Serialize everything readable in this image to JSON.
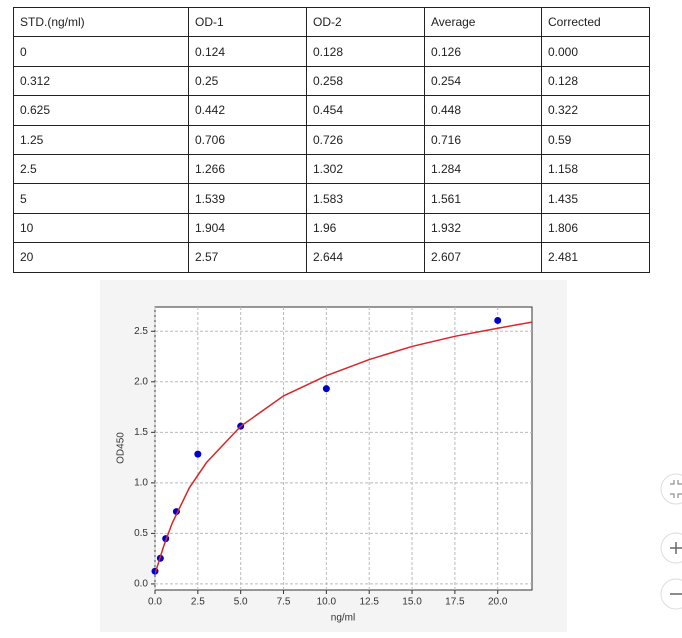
{
  "table": {
    "header": [
      "STD.(ng/ml)",
      "OD-1",
      "OD-2",
      "Average",
      "Corrected"
    ],
    "rows": [
      [
        "0",
        "0.124",
        "0.128",
        "0.126",
        "0.000"
      ],
      [
        "0.312",
        "0.25",
        "0.258",
        "0.254",
        "0.128"
      ],
      [
        "0.625",
        "0.442",
        "0.454",
        "0.448",
        "0.322"
      ],
      [
        "1.25",
        "0.706",
        "0.726",
        "0.716",
        "0.59"
      ],
      [
        "2.5",
        "1.266",
        "1.302",
        "1.284",
        "1.158"
      ],
      [
        "5",
        "1.539",
        "1.583",
        "1.561",
        "1.435"
      ],
      [
        "10",
        "1.904",
        "1.96",
        "1.932",
        "1.806"
      ],
      [
        "20",
        "2.57",
        "2.644",
        "2.607",
        "2.481"
      ]
    ]
  },
  "chart_data": {
    "type": "scatter",
    "xlabel": "ng/ml",
    "ylabel": "OD450",
    "grid": true,
    "xlim": [
      0,
      22
    ],
    "ylim": [
      -0.06,
      2.74
    ],
    "xticks": [
      {
        "value": 0,
        "label": "0.0"
      },
      {
        "value": 2.5,
        "label": "2.5"
      },
      {
        "value": 5,
        "label": "5.0"
      },
      {
        "value": 7.5,
        "label": "7.5"
      },
      {
        "value": 10,
        "label": "10.0"
      },
      {
        "value": 12.5,
        "label": "12.5"
      },
      {
        "value": 15,
        "label": "15.0"
      },
      {
        "value": 17.5,
        "label": "17.5"
      },
      {
        "value": 20,
        "label": "20.0"
      }
    ],
    "yticks": [
      {
        "value": 0,
        "label": "0.0"
      },
      {
        "value": 0.5,
        "label": "0.5"
      },
      {
        "value": 1,
        "label": "1.0"
      },
      {
        "value": 1.5,
        "label": "1.5"
      },
      {
        "value": 2,
        "label": "2.0"
      },
      {
        "value": 2.5,
        "label": "2.5"
      }
    ],
    "series": [
      {
        "mode": "markers",
        "color": "#0000cc",
        "x": [
          0,
          0.312,
          0.625,
          1.25,
          2.5,
          5,
          10,
          20
        ],
        "values": [
          0.126,
          0.254,
          0.448,
          0.716,
          1.284,
          1.561,
          1.932,
          2.607
        ]
      },
      {
        "mode": "line",
        "color": "#d62728",
        "x": [
          0,
          0.5,
          1,
          2,
          3,
          5,
          7.5,
          10,
          12.5,
          15,
          17.5,
          20,
          22
        ],
        "values": [
          0.1,
          0.37,
          0.6,
          0.95,
          1.2,
          1.56,
          1.86,
          2.06,
          2.22,
          2.35,
          2.45,
          2.53,
          2.59
        ]
      }
    ]
  }
}
